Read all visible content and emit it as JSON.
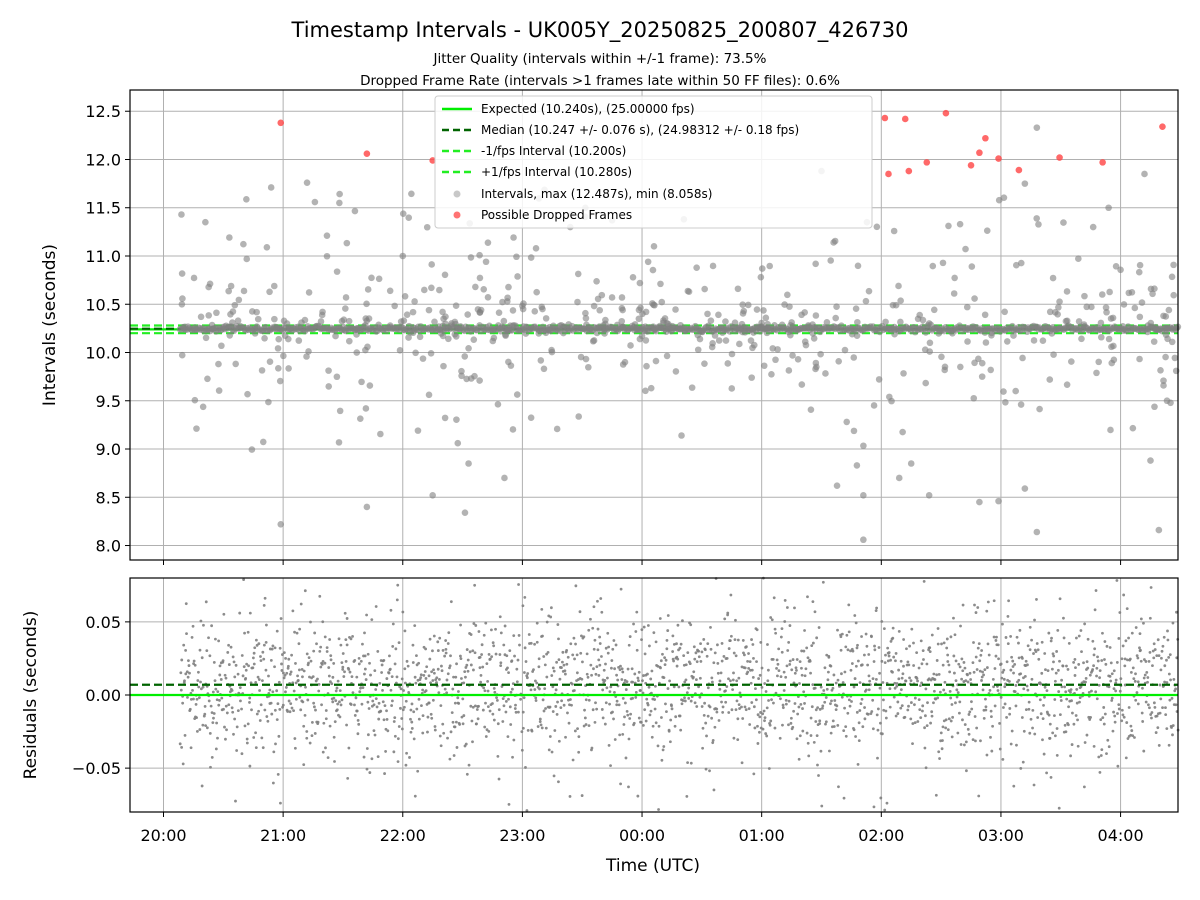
{
  "figure": {
    "title": "Timestamp Intervals - UK005Y_20250825_200807_426730",
    "subtitle_line1": "Jitter Quality (intervals within +/-1 frame): 73.5%",
    "subtitle_line2": "Dropped Frame Rate (intervals >1 frames late within 50 FF files): 0.6%",
    "xlabel": "Time (UTC)"
  },
  "colors": {
    "expected": "#00ee00",
    "median": "#006400",
    "interval_band": "#22ee22",
    "points": "#808080",
    "dropped": "#ff4444",
    "grid": "#b0b0b0"
  },
  "chart_data": [
    {
      "type": "scatter",
      "panel": "top",
      "ylabel": "Intervals (seconds)",
      "x_unit": "hours since 20:00 UTC (ticks labeled as clock time)",
      "xlim": [
        -0.28,
        8.48
      ],
      "ylim": [
        7.85,
        12.72
      ],
      "x_ticks": [
        0,
        1,
        2,
        3,
        4,
        5,
        6,
        7,
        8
      ],
      "x_tick_labels": [
        "20:00",
        "21:00",
        "22:00",
        "23:00",
        "00:00",
        "01:00",
        "02:00",
        "03:00",
        "04:00"
      ],
      "y_ticks": [
        8.0,
        8.5,
        9.0,
        9.5,
        10.0,
        10.5,
        11.0,
        11.5,
        12.0,
        12.5
      ],
      "y_tick_labels": [
        "8.0",
        "8.5",
        "9.0",
        "9.5",
        "10.0",
        "10.5",
        "11.0",
        "11.5",
        "12.0",
        "12.5"
      ],
      "grid": true,
      "legend_position": "top-center",
      "lines": [
        {
          "name": "Expected (10.240s), (25.00000 fps)",
          "y": 10.24,
          "style": "solid",
          "color": "#00ee00"
        },
        {
          "name": "Median (10.247 +/- 0.076 s), (24.98312 +/- 0.18 fps)",
          "y": 10.247,
          "style": "dashed",
          "color": "#006400"
        },
        {
          "name": "-1/fps Interval (10.200s)",
          "y": 10.2,
          "style": "dashed",
          "color": "#22ee22"
        },
        {
          "name": "+1/fps Interval (10.280s)",
          "y": 10.28,
          "style": "dashed",
          "color": "#22ee22"
        }
      ],
      "scatter_legend": "Intervals, max (12.487s), min (8.058s)",
      "dropped_legend": "Possible Dropped Frames",
      "dropped_points": [
        {
          "x": 0.98,
          "y": 12.38
        },
        {
          "x": 1.7,
          "y": 12.06
        },
        {
          "x": 2.25,
          "y": 11.99
        },
        {
          "x": 7.85,
          "y": 11.97
        },
        {
          "x": 6.03,
          "y": 12.43
        },
        {
          "x": 6.2,
          "y": 12.42
        },
        {
          "x": 6.54,
          "y": 12.48
        },
        {
          "x": 6.38,
          "y": 11.97
        },
        {
          "x": 6.23,
          "y": 11.88
        },
        {
          "x": 6.06,
          "y": 11.85
        },
        {
          "x": 6.75,
          "y": 11.94
        },
        {
          "x": 6.82,
          "y": 12.07
        },
        {
          "x": 6.87,
          "y": 12.22
        },
        {
          "x": 6.98,
          "y": 12.01
        },
        {
          "x": 7.15,
          "y": 11.89
        },
        {
          "x": 7.49,
          "y": 12.02
        },
        {
          "x": 8.35,
          "y": 12.34
        }
      ],
      "outlier_points": [
        {
          "x": 0.98,
          "y": 8.22
        },
        {
          "x": 1.7,
          "y": 8.4
        },
        {
          "x": 2.25,
          "y": 8.52
        },
        {
          "x": 2.52,
          "y": 8.34
        },
        {
          "x": 2.55,
          "y": 8.85
        },
        {
          "x": 2.85,
          "y": 8.7
        },
        {
          "x": 3.4,
          "y": 11.3
        },
        {
          "x": 3.75,
          "y": 11.37
        },
        {
          "x": 4.33,
          "y": 9.14
        },
        {
          "x": 4.35,
          "y": 11.38
        },
        {
          "x": 5.63,
          "y": 8.62
        },
        {
          "x": 5.85,
          "y": 8.06
        },
        {
          "x": 5.85,
          "y": 8.52
        },
        {
          "x": 5.88,
          "y": 11.35
        },
        {
          "x": 6.15,
          "y": 8.7
        },
        {
          "x": 6.25,
          "y": 8.85
        },
        {
          "x": 6.4,
          "y": 8.52
        },
        {
          "x": 6.82,
          "y": 8.45
        },
        {
          "x": 6.98,
          "y": 8.46
        },
        {
          "x": 7.3,
          "y": 8.14
        },
        {
          "x": 7.2,
          "y": 8.59
        },
        {
          "x": 8.32,
          "y": 8.16
        },
        {
          "x": 8.25,
          "y": 8.88
        },
        {
          "x": 5.5,
          "y": 11.88
        },
        {
          "x": 0.9,
          "y": 11.71
        },
        {
          "x": 1.2,
          "y": 11.76
        },
        {
          "x": 0.15,
          "y": 11.43
        },
        {
          "x": 0.35,
          "y": 11.35
        },
        {
          "x": 7.2,
          "y": 11.75
        },
        {
          "x": 8.2,
          "y": 11.85
        },
        {
          "x": 7.3,
          "y": 12.33
        },
        {
          "x": 1.47,
          "y": 11.55
        },
        {
          "x": 2.0,
          "y": 11.0
        },
        {
          "x": 4.1,
          "y": 11.1
        },
        {
          "x": 7.9,
          "y": 11.5
        }
      ]
    },
    {
      "type": "scatter",
      "panel": "bottom",
      "ylabel": "Residuals (seconds)",
      "xlim": [
        -0.28,
        8.48
      ],
      "ylim": [
        -0.08,
        0.08
      ],
      "y_ticks": [
        -0.05,
        0.0,
        0.05
      ],
      "y_tick_labels": [
        "−0.05",
        "0.00",
        "0.05"
      ],
      "grid": true,
      "lines": [
        {
          "name": "Expected",
          "y": 0.0,
          "style": "solid",
          "color": "#00ee00"
        },
        {
          "name": "Median",
          "y": 0.007,
          "style": "dashed",
          "color": "#006400"
        }
      ],
      "x_range_points": [
        0.14,
        8.48
      ],
      "residual_center": 0.007,
      "residual_spread": 0.03
    }
  ]
}
